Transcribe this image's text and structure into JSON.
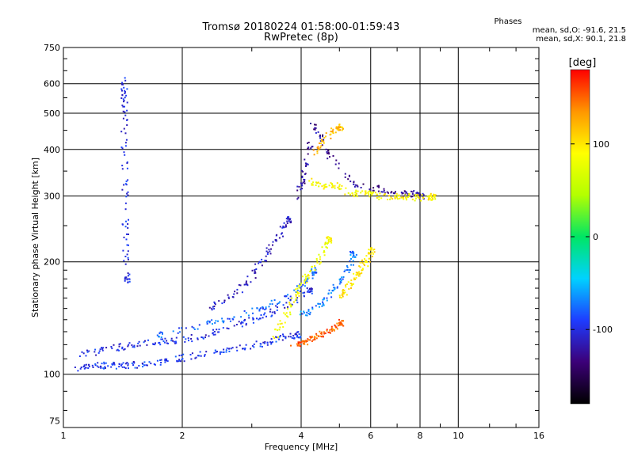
{
  "title_line1": "Tromsø 20180224 01:58:00-01:59:43",
  "title_line2": "RwPretec (8p)",
  "stats": {
    "heading": "Phases",
    "line_o": "mean, sd,O: -91.6, 21.5",
    "line_x": "mean, sd,X:  90.1, 21.8"
  },
  "chart_data": {
    "type": "scatter",
    "title": "Tromsø 20180224 01:58:00-01:59:43",
    "subtitle": "RwPretec (8p)",
    "xlabel": "Frequency [MHz]",
    "ylabel": "Stationary phase Virtual Height [km]",
    "x_scale": "log",
    "y_scale": "log",
    "xlim": [
      1,
      16
    ],
    "ylim": [
      72,
      750
    ],
    "x_ticks": [
      1,
      2,
      4,
      6,
      8,
      10,
      16
    ],
    "y_ticks": [
      75,
      100,
      200,
      300,
      400,
      500,
      600,
      750
    ],
    "grid": true,
    "colorbar": {
      "label": "[deg]",
      "range": [
        -180,
        180
      ],
      "ticks": [
        -100,
        0,
        100
      ],
      "colors": [
        "#000000",
        "#3c0078",
        "#1e3cff",
        "#00d2ff",
        "#00e664",
        "#b4ff00",
        "#ffff00",
        "#ff9600",
        "#ff0000"
      ]
    },
    "series": [
      {
        "phase": -95,
        "x": [
          1.05,
          1.15,
          1.25,
          1.35,
          1.45,
          1.6,
          1.8,
          2.0,
          2.3,
          2.6,
          3.0,
          3.3,
          3.6,
          3.9
        ],
        "y": [
          104,
          105,
          106,
          106,
          106,
          107,
          109,
          111,
          114,
          117,
          120,
          123,
          126,
          128
        ]
      },
      {
        "phase": -100,
        "x": [
          1.1,
          1.25,
          1.4,
          1.6,
          1.8,
          2.0,
          2.3,
          2.6,
          2.9,
          3.3,
          3.7,
          4.2
        ],
        "y": [
          113,
          116,
          119,
          122,
          123,
          124,
          128,
          133,
          139,
          146,
          155,
          168
        ]
      },
      {
        "phase": -80,
        "x": [
          1.7,
          2.0,
          2.4,
          2.8,
          3.2,
          3.6,
          4.0,
          4.3
        ],
        "y": [
          128,
          132,
          138,
          145,
          152,
          160,
          172,
          190
        ]
      },
      {
        "phase": -110,
        "x": [
          2.3,
          2.6,
          2.9,
          3.1,
          3.3,
          3.5,
          3.7
        ],
        "y": [
          150,
          160,
          175,
          195,
          215,
          235,
          260
        ]
      },
      {
        "phase": -125,
        "x": [
          3.9,
          4.0,
          4.1,
          4.3,
          4.6,
          5.0,
          5.6,
          6.3,
          7.0,
          7.6,
          8.0
        ],
        "y": [
          300,
          330,
          380,
          470,
          400,
          350,
          320,
          315,
          310,
          305,
          302
        ]
      },
      {
        "phase": 90,
        "x": [
          4.2,
          4.5,
          4.8,
          5.2,
          5.6,
          6.0,
          6.5,
          7.0,
          7.5,
          8.0,
          8.6
        ],
        "y": [
          330,
          320,
          325,
          310,
          305,
          305,
          300,
          300,
          300,
          298,
          300
        ]
      },
      {
        "phase": 85,
        "x": [
          3.4,
          3.6,
          3.8,
          4.0,
          4.2,
          4.5,
          4.7
        ],
        "y": [
          125,
          140,
          160,
          175,
          190,
          210,
          230
        ]
      },
      {
        "phase": 150,
        "x": [
          3.8,
          4.0,
          4.2,
          4.4,
          4.6,
          4.8,
          5.0
        ],
        "y": [
          120,
          122,
          124,
          127,
          130,
          133,
          138
        ]
      },
      {
        "phase": 100,
        "x": [
          5.0,
          5.2,
          5.4,
          5.6,
          5.8,
          6.0
        ],
        "y": [
          160,
          170,
          180,
          190,
          200,
          215
        ]
      },
      {
        "phase": -70,
        "x": [
          4.0,
          4.3,
          4.6,
          4.9,
          5.2,
          5.4
        ],
        "y": [
          145,
          150,
          160,
          172,
          190,
          210
        ]
      },
      {
        "phase": -100,
        "x": [
          1.42,
          1.42,
          1.42,
          1.42,
          1.43,
          1.43,
          1.44
        ],
        "y": [
          620,
          560,
          500,
          380,
          300,
          230,
          180
        ]
      },
      {
        "phase": 120,
        "x": [
          4.3,
          4.5,
          4.8,
          5.0
        ],
        "y": [
          390,
          420,
          450,
          460
        ]
      }
    ]
  }
}
